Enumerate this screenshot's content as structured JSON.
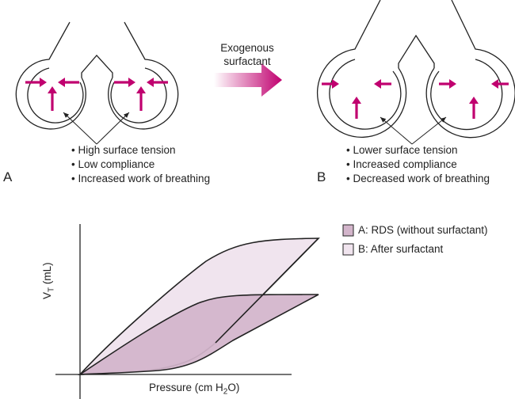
{
  "panel_a": {
    "label": "A",
    "bullets": [
      "• High surface tension",
      "• Low compliance",
      "• Increased work of breathing"
    ]
  },
  "transition": {
    "line1": "Exogenous",
    "line2": "surfactant"
  },
  "panel_b": {
    "label": "B",
    "bullets": [
      "• Lower surface tension",
      "• Increased compliance",
      "• Decreased work of breathing"
    ]
  },
  "graph": {
    "ylabel_main": "V",
    "ylabel_sub": "T",
    "ylabel_unit": " (mL)",
    "xlabel_main": "Pressure (cm H",
    "xlabel_sub": "2",
    "xlabel_end": "O)",
    "legend": [
      {
        "label": "A: RDS (without surfactant)",
        "color": "#d3b5cb"
      },
      {
        "label": "B: After surfactant",
        "color": "#f0e4ee"
      }
    ]
  },
  "colors": {
    "arrow": "#c0006f",
    "line": "#222222"
  }
}
